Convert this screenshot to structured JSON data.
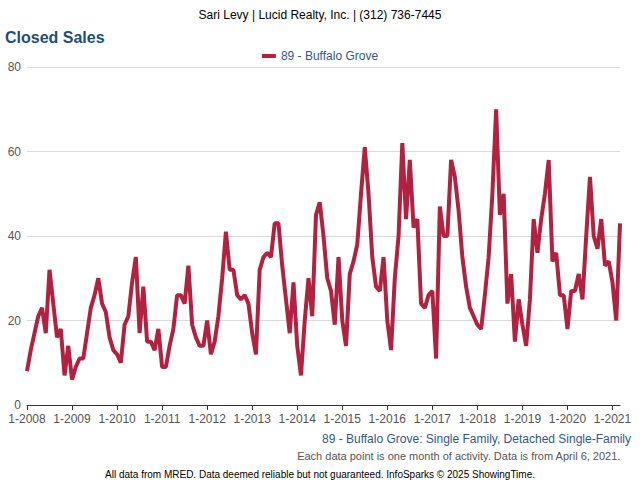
{
  "chart_data": {
    "type": "line",
    "title": "Closed Sales",
    "annotations": [
      "Sari Levy | Lucid Realty, Inc. | (312) 736-7445",
      "89 - Buffalo Grove: Single Family, Detached Single-Family",
      "Each data point is one month of activity. Data is from April 6, 2021.",
      "All data from MRED. Data deemed reliable but not guaranteed. InfoSparks © 2025 ShowingTime."
    ],
    "categories": [
      "1-2008",
      null,
      null,
      null,
      null,
      null,
      null,
      null,
      null,
      null,
      null,
      null,
      "1-2009",
      null,
      null,
      null,
      null,
      null,
      null,
      null,
      null,
      null,
      null,
      null,
      "1-2010",
      null,
      null,
      null,
      null,
      null,
      null,
      null,
      null,
      null,
      null,
      null,
      "1-2011",
      null,
      null,
      null,
      null,
      null,
      null,
      null,
      null,
      null,
      null,
      null,
      "1-2012",
      null,
      null,
      null,
      null,
      null,
      null,
      null,
      null,
      null,
      null,
      null,
      "1-2013",
      null,
      null,
      null,
      null,
      null,
      null,
      null,
      null,
      null,
      null,
      null,
      "1-2014",
      null,
      null,
      null,
      null,
      null,
      null,
      null,
      null,
      null,
      null,
      null,
      "1-2015",
      null,
      null,
      null,
      null,
      null,
      null,
      null,
      null,
      null,
      null,
      null,
      "1-2016",
      null,
      null,
      null,
      null,
      null,
      null,
      null,
      null,
      null,
      null,
      null,
      "1-2017",
      null,
      null,
      null,
      null,
      null,
      null,
      null,
      null,
      null,
      null,
      null,
      "1-2018",
      null,
      null,
      null,
      null,
      null,
      null,
      null,
      null,
      null,
      null,
      null,
      "1-2019",
      null,
      null,
      null,
      null,
      null,
      null,
      null,
      null,
      null,
      null,
      null,
      "1-2020",
      null,
      null,
      null,
      null,
      null,
      null,
      null,
      null,
      null,
      null,
      null,
      "1-2021",
      null,
      null
    ],
    "series": [
      {
        "name": "89 - Buffalo Grove",
        "color": "#b2213f",
        "values": [
          8,
          13,
          17,
          21,
          23,
          17,
          32,
          24,
          16,
          18,
          7,
          14,
          6,
          9,
          11,
          11,
          17,
          23,
          26,
          30,
          24,
          22,
          16,
          13,
          12,
          10,
          19,
          21,
          29,
          35,
          17,
          28,
          15,
          15,
          13,
          18,
          9,
          9,
          14,
          18,
          26,
          26,
          24,
          33,
          19,
          16,
          14,
          14,
          20,
          12,
          15,
          21,
          30,
          41,
          32,
          32,
          26,
          25,
          26,
          24,
          17,
          12,
          32,
          35,
          36,
          35,
          43,
          43,
          33,
          25,
          17,
          29,
          14,
          7,
          20,
          30,
          21,
          45,
          48,
          40,
          30,
          27,
          19,
          35,
          20,
          14,
          31,
          34,
          38,
          50,
          61,
          50,
          35,
          28,
          27,
          35,
          20,
          13,
          30,
          40,
          62,
          44,
          58,
          42,
          44,
          24,
          23,
          26,
          27,
          11,
          47,
          40,
          40,
          58,
          54,
          46,
          35,
          28,
          23,
          21,
          19,
          18,
          26,
          35,
          50,
          70,
          45,
          50,
          24,
          31,
          15,
          25,
          19,
          14,
          25,
          44,
          36,
          44,
          50,
          58,
          34,
          36,
          26,
          26,
          18,
          27,
          27,
          31,
          25,
          40,
          54,
          40,
          37,
          44,
          33,
          34,
          29,
          20,
          43
        ]
      }
    ],
    "ylim": [
      0,
      80
    ],
    "yticks": [
      0,
      20,
      40,
      60,
      80
    ],
    "grid": true,
    "legend": "top"
  }
}
